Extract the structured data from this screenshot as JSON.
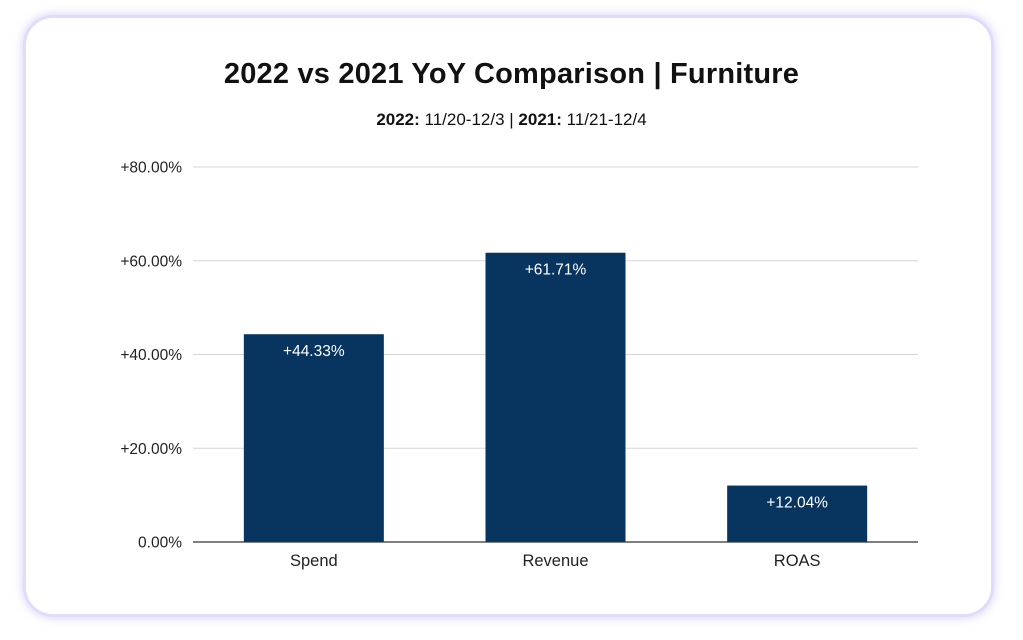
{
  "colors": {
    "bar": "#08355f",
    "grid": "#d6d6d6",
    "axis": "#333333",
    "frame_border": "#e2dcfb"
  },
  "chart_data": {
    "type": "bar",
    "title": "2022 vs 2021 YoY Comparison | Furniture",
    "subtitle": {
      "label_2022": "2022:",
      "range_2022": " 11/20-12/3 | ",
      "label_2021": "2021:",
      "range_2021": " 11/21-12/4"
    },
    "categories": [
      "Spend",
      "Revenue",
      "ROAS"
    ],
    "values": [
      44.33,
      61.71,
      12.04
    ],
    "data_labels": [
      "+44.33%",
      "+61.71%",
      "+12.04%"
    ],
    "ylim": [
      0,
      80
    ],
    "yticks": [
      0,
      20,
      40,
      60,
      80
    ],
    "ytick_labels": [
      "0.00%",
      "+20.00%",
      "+40.00%",
      "+60.00%",
      "+80.00%"
    ],
    "xlabel": "",
    "ylabel": "",
    "grid": true,
    "legend": "none"
  }
}
